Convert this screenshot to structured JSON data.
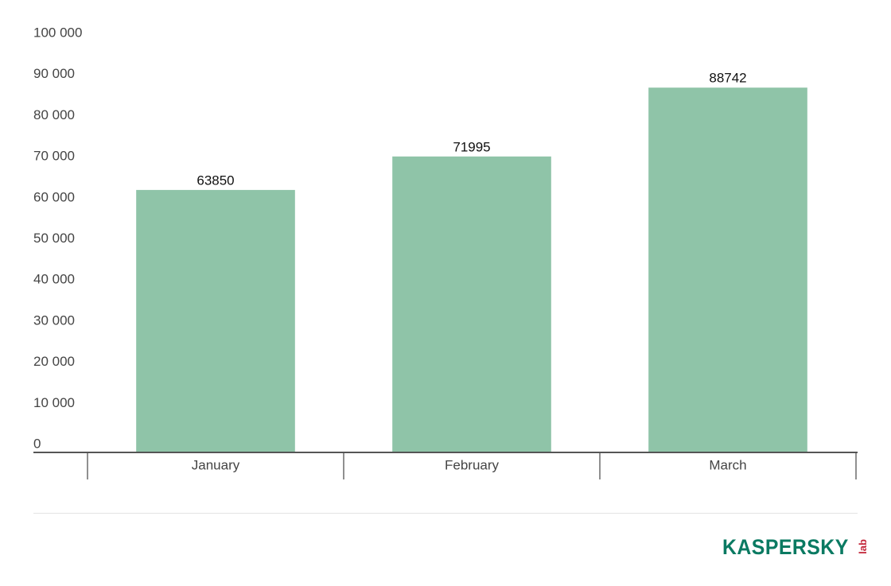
{
  "chart_data": {
    "type": "bar",
    "categories": [
      "January",
      "February",
      "March"
    ],
    "values": [
      63850,
      71995,
      88742
    ],
    "data_labels": [
      "63850",
      "71995",
      "88742"
    ],
    "yticks": [
      0,
      10000,
      20000,
      30000,
      40000,
      50000,
      60000,
      70000,
      80000,
      90000,
      100000
    ],
    "ytick_labels": [
      "0",
      "10 000",
      "20 000",
      "30 000",
      "40 000",
      "50 000",
      "60 000",
      "70 000",
      "80 000",
      "90 000",
      "100 000"
    ],
    "ylim": [
      0,
      100000
    ],
    "title": "",
    "xlabel": "",
    "ylabel": "",
    "grid": false,
    "legend": "none",
    "bar_color": "#8fc4a8",
    "axis_color": "#555555"
  },
  "logo": {
    "word": "KASPERSKY",
    "suffix": "lab",
    "word_color": "#0a7a62",
    "suffix_color": "#c3263a"
  }
}
